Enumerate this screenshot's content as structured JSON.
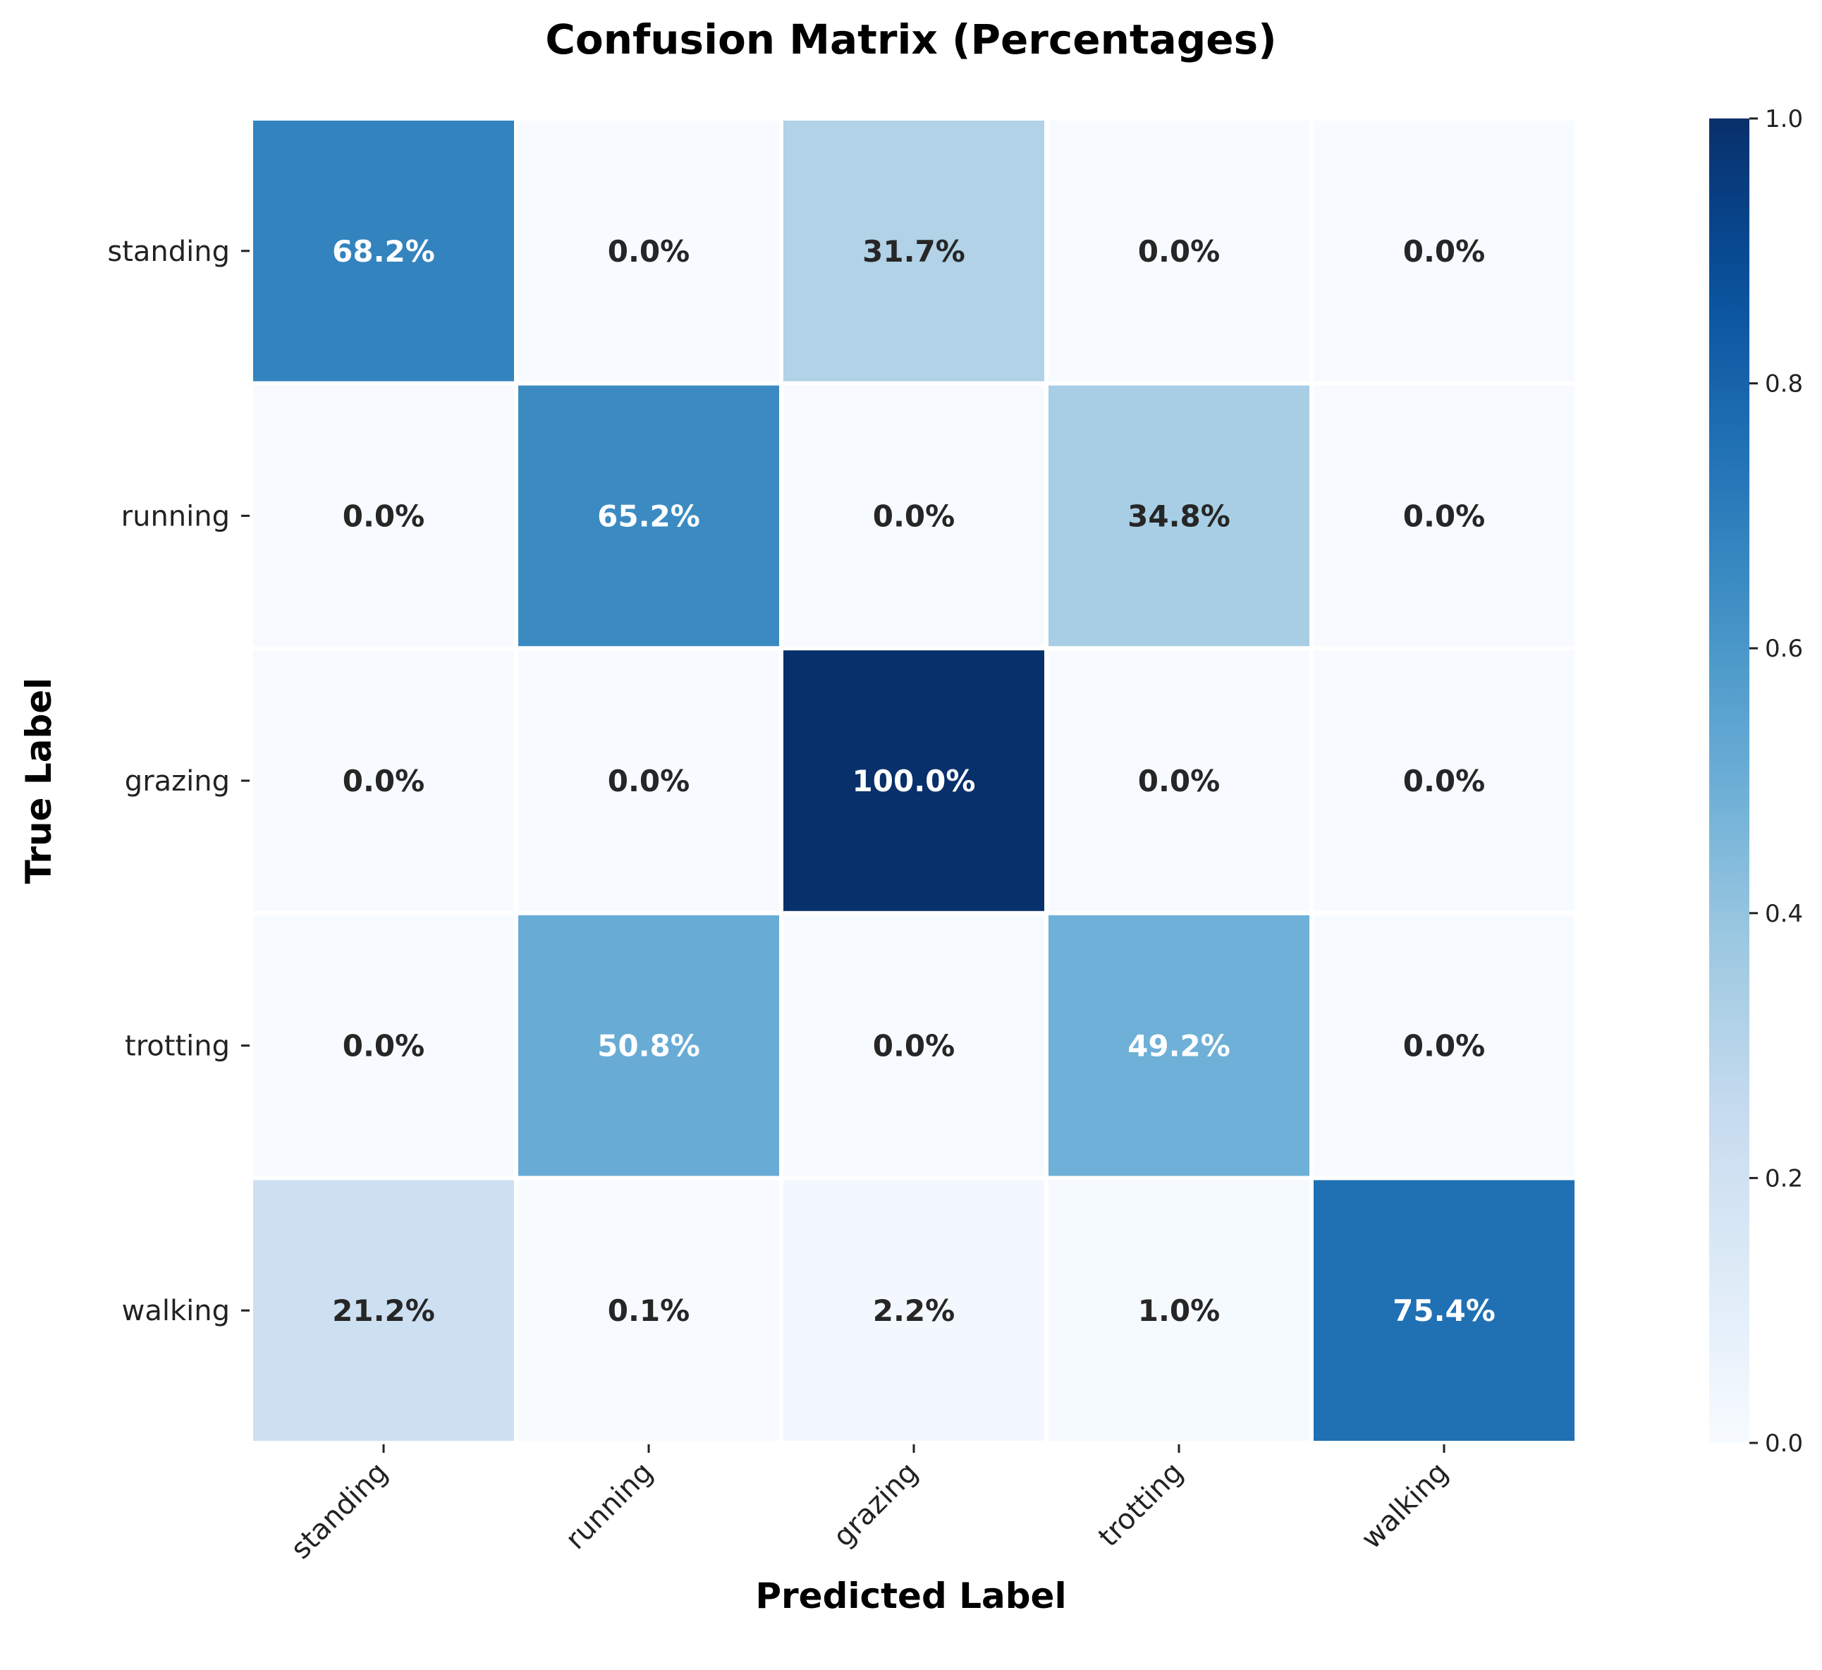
{
  "chart_data": {
    "type": "heatmap",
    "title": "Confusion Matrix (Percentages)",
    "xlabel": "Predicted Label",
    "ylabel": "True Label",
    "x_categories": [
      "standing",
      "running",
      "grazing",
      "trotting",
      "walking"
    ],
    "y_categories": [
      "standing",
      "running",
      "grazing",
      "trotting",
      "walking"
    ],
    "values": [
      [
        0.682,
        0.0,
        0.317,
        0.0,
        0.0
      ],
      [
        0.0,
        0.652,
        0.0,
        0.348,
        0.0
      ],
      [
        0.0,
        0.0,
        1.0,
        0.0,
        0.0
      ],
      [
        0.0,
        0.508,
        0.0,
        0.492,
        0.0
      ],
      [
        0.212,
        0.001,
        0.022,
        0.01,
        0.754
      ]
    ],
    "annotations": [
      [
        "68.2%",
        "0.0%",
        "31.7%",
        "0.0%",
        "0.0%"
      ],
      [
        "0.0%",
        "65.2%",
        "0.0%",
        "34.8%",
        "0.0%"
      ],
      [
        "0.0%",
        "0.0%",
        "100.0%",
        "0.0%",
        "0.0%"
      ],
      [
        "0.0%",
        "50.8%",
        "0.0%",
        "49.2%",
        "0.0%"
      ],
      [
        "21.2%",
        "0.1%",
        "2.2%",
        "1.0%",
        "75.4%"
      ]
    ],
    "colorscale": "Blues",
    "vmin": 0.0,
    "vmax": 1.0,
    "colorbar_ticks": [
      "0.0",
      "0.2",
      "0.4",
      "0.6",
      "0.8",
      "1.0"
    ],
    "grid": false,
    "cell_border_color": "#ffffff"
  }
}
